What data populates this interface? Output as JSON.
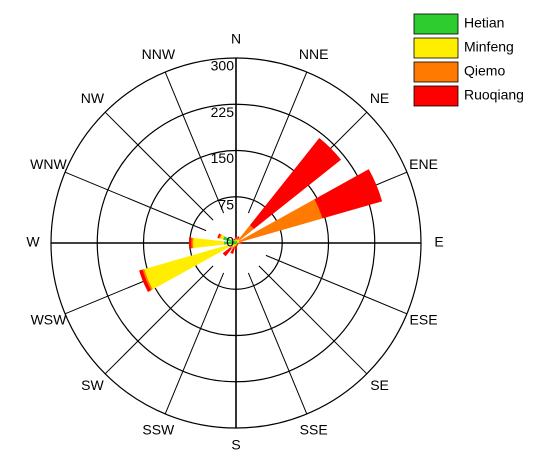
{
  "chart_data": {
    "type": "polar_bar",
    "categories": [
      "N",
      "NNE",
      "NE",
      "ENE",
      "E",
      "ESE",
      "SE",
      "SSE",
      "S",
      "SSW",
      "SW",
      "WSW",
      "W",
      "WNW",
      "NW",
      "NNW"
    ],
    "series": [
      {
        "name": "Hetian",
        "color": "#2ecc2e",
        "values": [
          4,
          3,
          3,
          3,
          2,
          1,
          1,
          1,
          2,
          2,
          3,
          5,
          20,
          22,
          5,
          3
        ]
      },
      {
        "name": "Minfeng",
        "color": "#ffee00",
        "values": [
          2,
          2,
          4,
          3,
          2,
          1,
          1,
          1,
          1,
          3,
          5,
          150,
          50,
          5,
          2,
          2
        ]
      },
      {
        "name": "Qiemo",
        "color": "#ff7a00",
        "values": [
          2,
          3,
          30,
          140,
          4,
          1,
          1,
          1,
          2,
          3,
          4,
          3,
          3,
          2,
          1,
          1
        ]
      },
      {
        "name": "Ruoqiang",
        "color": "#ff0000",
        "values": [
          2,
          3,
          180,
          100,
          3,
          1,
          1,
          2,
          5,
          10,
          15,
          5,
          3,
          2,
          1,
          1
        ]
      }
    ],
    "rlim": [
      0,
      300
    ],
    "rticks": [
      0,
      75,
      150,
      225,
      300
    ],
    "legend": "upper right"
  }
}
